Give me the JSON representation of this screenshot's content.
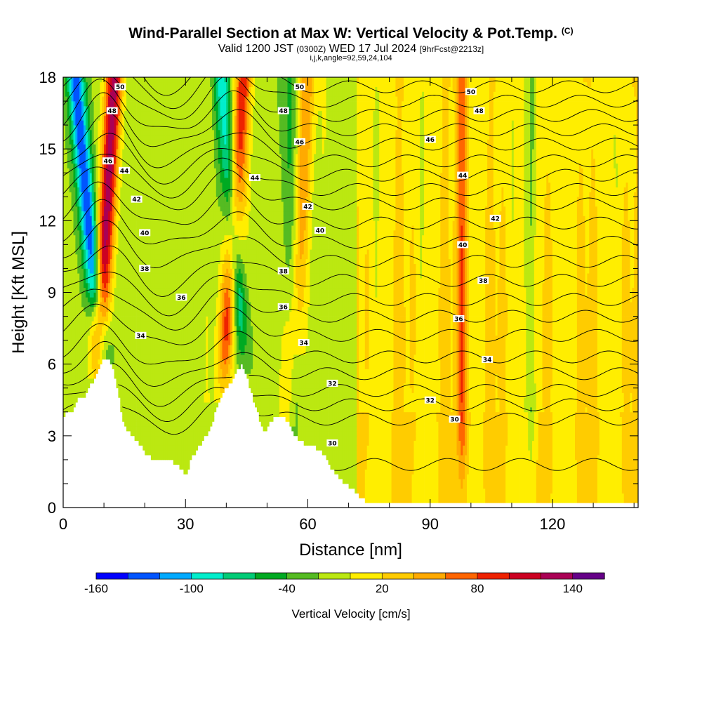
{
  "header": {
    "title": "Wind-Parallel Section at Max W: Vertical Velocity & Pot.Temp.",
    "copyright": "(C)",
    "valid_prefix": "Valid 1200 JST",
    "utc": "(0300Z)",
    "valid_date": "WED 17 Jul 2024",
    "fcst": "[9hrFcst@2213z]",
    "indices": "i,j,k,angle=92,59,24,104"
  },
  "chart_data": {
    "type": "heatmap",
    "xlabel": "Distance [nm]",
    "ylabel": "Height [Kft MSL]",
    "xlim": [
      0,
      141
    ],
    "ylim": [
      0,
      18
    ],
    "xticks": [
      0,
      30,
      60,
      90,
      120
    ],
    "yticks": [
      0,
      3,
      6,
      9,
      12,
      15,
      18
    ],
    "terrain": {
      "x": [
        0,
        1,
        2,
        3,
        4,
        5,
        6,
        7,
        8,
        9,
        10,
        11,
        12,
        13,
        14,
        15,
        16,
        17,
        18,
        19,
        20,
        22,
        24,
        26,
        28,
        30,
        32,
        34,
        36,
        37,
        38,
        39,
        40,
        41,
        42,
        43,
        44,
        45,
        46,
        47,
        48,
        49,
        50,
        51,
        52,
        53,
        54,
        55,
        56,
        57,
        58,
        59,
        60,
        62,
        64,
        66,
        68,
        70,
        72,
        74,
        78,
        85,
        100,
        120,
        141
      ],
      "height": [
        3.7,
        4.0,
        4.0,
        4.3,
        4.6,
        4.6,
        4.9,
        5.2,
        5.6,
        6.0,
        6.3,
        6.3,
        5.9,
        5.2,
        4.3,
        3.5,
        3.2,
        3.0,
        2.8,
        2.6,
        2.3,
        2.0,
        2.0,
        2.0,
        1.8,
        1.4,
        2.2,
        2.7,
        3.3,
        3.8,
        4.3,
        4.7,
        5.0,
        5.2,
        5.5,
        5.8,
        6.0,
        5.5,
        4.9,
        4.3,
        3.8,
        3.3,
        3.3,
        3.6,
        3.9,
        3.9,
        3.9,
        3.6,
        3.3,
        3.0,
        2.8,
        2.7,
        2.6,
        2.5,
        2.2,
        1.6,
        1.2,
        0.9,
        0.6,
        0.3,
        0.3,
        0.3,
        0.3,
        0.3,
        0.3
      ]
    },
    "updrafts": [
      {
        "x_base": 8,
        "x_top": 12.5,
        "peak_cm_s": 145
      },
      {
        "x_base": 39,
        "x_top": 44,
        "peak_cm_s": 100
      },
      {
        "x_base": 55,
        "x_top": 60,
        "peak_cm_s": 60
      },
      {
        "x_base": 98,
        "x_top": 98,
        "peak_cm_s": 70
      }
    ],
    "downdrafts": [
      {
        "x_base": 10,
        "x_top": 3,
        "peak_cm_s": -120
      },
      {
        "x_base": 44.5,
        "x_top": 39,
        "peak_cm_s": -90
      },
      {
        "x_base": 57,
        "x_top": 55,
        "peak_cm_s": -40
      },
      {
        "x_base": 115,
        "x_top": 115,
        "peak_cm_s": -40
      }
    ],
    "isentropes": {
      "values": [
        29,
        30,
        31,
        32,
        33,
        34,
        35,
        36,
        37,
        38,
        39,
        40,
        41,
        42,
        43,
        44,
        45,
        46,
        47,
        48,
        49,
        50
      ],
      "height_at_x_far": [
        1.8,
        3.7,
        4.3,
        4.9,
        5.6,
        6.3,
        7.2,
        8.0,
        8.7,
        9.5,
        10.3,
        11.1,
        11.9,
        12.7,
        13.3,
        13.9,
        14.5,
        15.2,
        15.8,
        16.4,
        17.0,
        17.6
      ],
      "labeled": [
        {
          "value": "50",
          "x": 14,
          "y": 17.6
        },
        {
          "value": "50",
          "x": 58,
          "y": 17.6
        },
        {
          "value": "50",
          "x": 100,
          "y": 17.4
        },
        {
          "value": "48",
          "x": 12,
          "y": 16.6
        },
        {
          "value": "48",
          "x": 54,
          "y": 16.6
        },
        {
          "value": "48",
          "x": 102,
          "y": 16.6
        },
        {
          "value": "46",
          "x": 11,
          "y": 14.5
        },
        {
          "value": "46",
          "x": 58,
          "y": 15.3
        },
        {
          "value": "46",
          "x": 90,
          "y": 15.4
        },
        {
          "value": "44",
          "x": 15,
          "y": 14.1
        },
        {
          "value": "44",
          "x": 47,
          "y": 13.8
        },
        {
          "value": "44",
          "x": 98,
          "y": 13.9
        },
        {
          "value": "42",
          "x": 18,
          "y": 12.9
        },
        {
          "value": "42",
          "x": 60,
          "y": 12.6
        },
        {
          "value": "42",
          "x": 106,
          "y": 12.1
        },
        {
          "value": "40",
          "x": 20,
          "y": 11.5
        },
        {
          "value": "40",
          "x": 63,
          "y": 11.6
        },
        {
          "value": "40",
          "x": 98,
          "y": 11.0
        },
        {
          "value": "38",
          "x": 20,
          "y": 10.0
        },
        {
          "value": "38",
          "x": 54,
          "y": 9.9
        },
        {
          "value": "38",
          "x": 103,
          "y": 9.5
        },
        {
          "value": "36",
          "x": 29,
          "y": 8.8
        },
        {
          "value": "36",
          "x": 54,
          "y": 8.4
        },
        {
          "value": "36",
          "x": 97,
          "y": 7.9
        },
        {
          "value": "34",
          "x": 19,
          "y": 7.2
        },
        {
          "value": "34",
          "x": 59,
          "y": 6.9
        },
        {
          "value": "34",
          "x": 104,
          "y": 6.2
        },
        {
          "value": "32",
          "x": 66,
          "y": 5.2
        },
        {
          "value": "32",
          "x": 90,
          "y": 4.5
        },
        {
          "value": "30",
          "x": 66,
          "y": 2.7
        },
        {
          "value": "30",
          "x": 96,
          "y": 3.7
        }
      ]
    },
    "colorbar": {
      "label": "Vertical Velocity [cm/s]",
      "min": -160,
      "max": 160,
      "step": 20,
      "tick_labels": [
        "-160",
        "-100",
        "-40",
        "20",
        "80",
        "140"
      ],
      "tick_values": [
        -160,
        -100,
        -40,
        20,
        80,
        140
      ],
      "colors": [
        "#0000ff",
        "#0055ff",
        "#00aaff",
        "#00eecc",
        "#00cc77",
        "#00aa22",
        "#55bb22",
        "#bbe811",
        "#ffee00",
        "#ffcc00",
        "#ffaa00",
        "#ff6600",
        "#ee2200",
        "#cc0022",
        "#aa0055",
        "#660088"
      ]
    }
  }
}
